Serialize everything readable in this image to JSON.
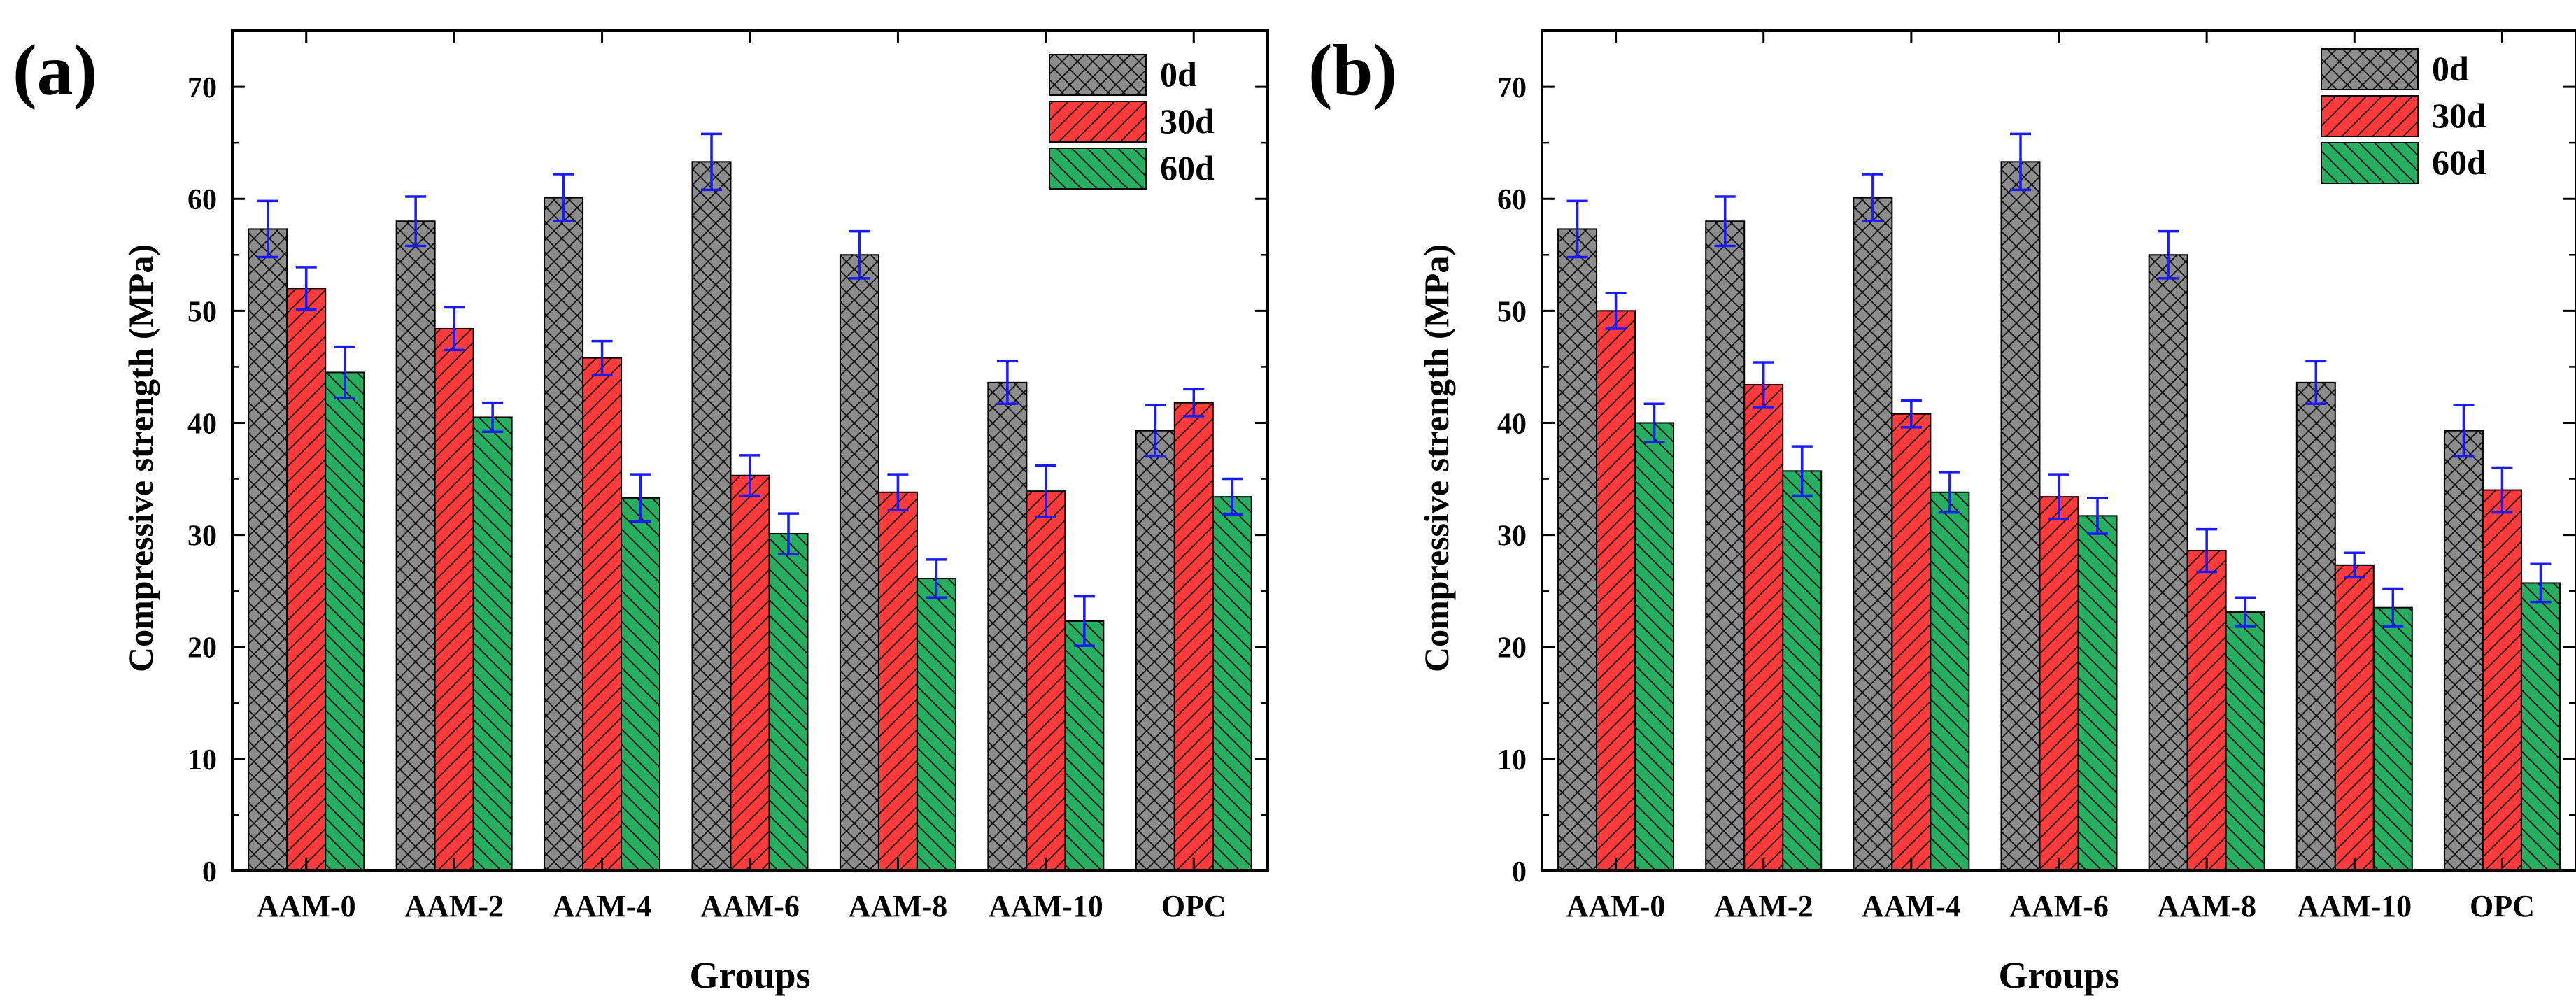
{
  "colors": {
    "day0": "#8c8c8c",
    "day30": "#ff3b3b",
    "day60": "#27ae60",
    "error_bar": "#1a1aff",
    "axis": "#000000"
  },
  "chart_data": [
    {
      "panel_label": "(a)",
      "type": "bar",
      "xlabel": "Groups",
      "ylabel": "Compressive strength (MPa)",
      "ylim": [
        0,
        75
      ],
      "yticks": [
        "0",
        "10",
        "20",
        "30",
        "40",
        "50",
        "60",
        "70"
      ],
      "legend_position": "top-right",
      "categories": [
        "AAM-0",
        "AAM-2",
        "AAM-4",
        "AAM-6",
        "AAM-8",
        "AAM-10",
        "OPC"
      ],
      "series": [
        {
          "name": "0d",
          "values": [
            57.3,
            58.0,
            60.1,
            63.3,
            55.0,
            43.6,
            39.3
          ],
          "errors": [
            2.5,
            2.2,
            2.1,
            2.5,
            2.1,
            1.9,
            2.3
          ]
        },
        {
          "name": "30d",
          "values": [
            52.0,
            48.4,
            45.8,
            35.3,
            33.8,
            33.9,
            41.8
          ],
          "errors": [
            1.9,
            1.9,
            1.5,
            1.8,
            1.6,
            2.3,
            1.2
          ]
        },
        {
          "name": "60d",
          "values": [
            44.5,
            40.5,
            33.3,
            30.1,
            26.1,
            22.3,
            33.4
          ],
          "errors": [
            2.3,
            1.3,
            2.1,
            1.8,
            1.7,
            2.2,
            1.6
          ]
        }
      ]
    },
    {
      "panel_label": "(b)",
      "type": "bar",
      "xlabel": "Groups",
      "ylabel": "Compressive strength (MPa)",
      "ylim": [
        0,
        75
      ],
      "yticks": [
        "0",
        "10",
        "20",
        "30",
        "40",
        "50",
        "60",
        "70"
      ],
      "legend_position": "top-right",
      "categories": [
        "AAM-0",
        "AAM-2",
        "AAM-4",
        "AAM-6",
        "AAM-8",
        "AAM-10",
        "OPC"
      ],
      "series": [
        {
          "name": "0d",
          "values": [
            57.3,
            58.0,
            60.1,
            63.3,
            55.0,
            43.6,
            39.3
          ],
          "errors": [
            2.5,
            2.2,
            2.1,
            2.5,
            2.1,
            1.9,
            2.3
          ]
        },
        {
          "name": "30d",
          "values": [
            50.0,
            43.4,
            40.8,
            33.4,
            28.6,
            27.3,
            34.0
          ],
          "errors": [
            1.6,
            2.0,
            1.2,
            2.0,
            1.9,
            1.1,
            2.0
          ]
        },
        {
          "name": "60d",
          "values": [
            40.0,
            35.7,
            33.8,
            31.7,
            23.1,
            23.5,
            25.7
          ],
          "errors": [
            1.7,
            2.2,
            1.8,
            1.6,
            1.3,
            1.7,
            1.7
          ]
        }
      ]
    }
  ]
}
